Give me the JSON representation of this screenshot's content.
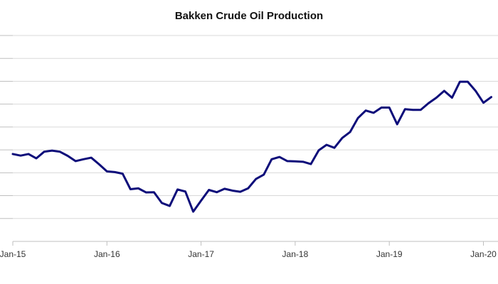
{
  "chart_data": {
    "type": "line",
    "title": "Bakken Crude Oil Production",
    "xlabel": "",
    "ylabel": "",
    "grid": true,
    "legend": "none",
    "y_gridlines": 9,
    "ylim": [
      0,
      9
    ],
    "x_tick_labels": [
      "Jan-15",
      "Jan-16",
      "Jan-17",
      "Jan-18",
      "Jan-19",
      "Jan-20"
    ],
    "series": [
      {
        "color": "#0d0d7a",
        "x": [
          "2015-01",
          "2015-02",
          "2015-03",
          "2015-04",
          "2015-05",
          "2015-06",
          "2015-07",
          "2015-08",
          "2015-09",
          "2015-10",
          "2015-11",
          "2015-12",
          "2016-01",
          "2016-02",
          "2016-03",
          "2016-04",
          "2016-05",
          "2016-06",
          "2016-07",
          "2016-08",
          "2016-09",
          "2016-10",
          "2016-11",
          "2016-12",
          "2017-01",
          "2017-02",
          "2017-03",
          "2017-04",
          "2017-05",
          "2017-06",
          "2017-07",
          "2017-08",
          "2017-09",
          "2017-10",
          "2017-11",
          "2017-12",
          "2018-01",
          "2018-02",
          "2018-03",
          "2018-04",
          "2018-05",
          "2018-06",
          "2018-07",
          "2018-08",
          "2018-09",
          "2018-10",
          "2018-11",
          "2018-12",
          "2019-01",
          "2019-02",
          "2019-03",
          "2019-04",
          "2019-05",
          "2019-06",
          "2019-07",
          "2019-08",
          "2019-09",
          "2019-10",
          "2019-11",
          "2019-12",
          "2020-01",
          "2020-02"
        ],
        "values": [
          3.82,
          3.75,
          3.82,
          3.63,
          3.92,
          3.97,
          3.92,
          3.74,
          3.51,
          3.59,
          3.66,
          3.37,
          3.06,
          3.03,
          2.96,
          2.28,
          2.32,
          2.14,
          2.15,
          1.68,
          1.55,
          2.27,
          2.18,
          1.3,
          1.78,
          2.25,
          2.15,
          2.3,
          2.22,
          2.17,
          2.32,
          2.73,
          2.92,
          3.59,
          3.69,
          3.51,
          3.5,
          3.48,
          3.38,
          3.98,
          4.22,
          4.09,
          4.52,
          4.78,
          5.39,
          5.72,
          5.62,
          5.85,
          5.85,
          5.12,
          5.78,
          5.75,
          5.75,
          6.04,
          6.28,
          6.58,
          6.28,
          6.98,
          6.98,
          6.58,
          6.06,
          6.31
        ]
      }
    ]
  }
}
